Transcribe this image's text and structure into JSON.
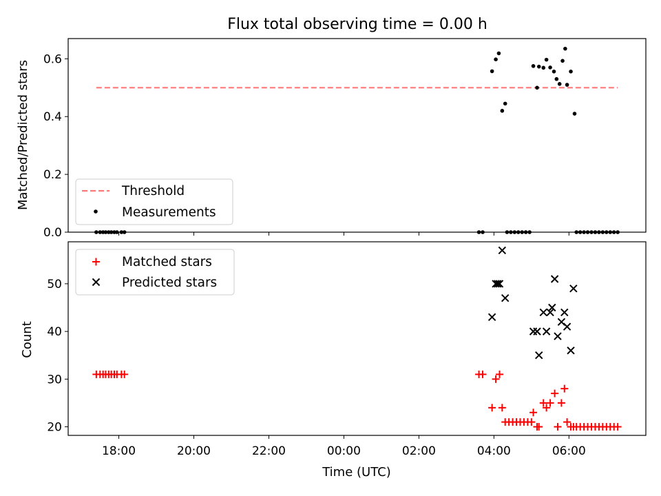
{
  "chart_data": [
    {
      "type": "scatter",
      "title": "Flux total observing time = 0.00 h",
      "ylabel": "Matched/Predicted stars",
      "ylim": [
        0,
        0.67
      ],
      "yticks": [
        "0.0",
        "0.2",
        "0.4",
        "0.6"
      ],
      "legend_position": "lower-left",
      "threshold": {
        "name": "Threshold",
        "value": 0.5,
        "x_range": [
          -0.6,
          13.3
        ],
        "color": "#ff7777"
      },
      "series": [
        {
          "name": "Measurements",
          "color": "#000000",
          "points": [
            [
              -0.6,
              0
            ],
            [
              -0.5,
              0
            ],
            [
              -0.42,
              0
            ],
            [
              -0.35,
              0
            ],
            [
              -0.27,
              0
            ],
            [
              -0.2,
              0
            ],
            [
              -0.12,
              0
            ],
            [
              -0.05,
              0
            ],
            [
              0.07,
              0
            ],
            [
              0.15,
              0
            ],
            [
              9.6,
              0
            ],
            [
              9.7,
              0
            ],
            [
              9.95,
              0.557
            ],
            [
              10.05,
              0.598
            ],
            [
              10.13,
              0.619
            ],
            [
              10.22,
              0.42
            ],
            [
              10.3,
              0.445
            ],
            [
              10.35,
              0
            ],
            [
              10.45,
              0
            ],
            [
              10.55,
              0
            ],
            [
              10.65,
              0
            ],
            [
              10.75,
              0
            ],
            [
              10.85,
              0
            ],
            [
              10.95,
              0
            ],
            [
              11.05,
              0.575
            ],
            [
              11.15,
              0.5
            ],
            [
              11.2,
              0.573
            ],
            [
              11.32,
              0.569
            ],
            [
              11.4,
              0.597
            ],
            [
              11.5,
              0.57
            ],
            [
              11.6,
              0.556
            ],
            [
              11.67,
              0.53
            ],
            [
              11.75,
              0.513
            ],
            [
              11.83,
              0.593
            ],
            [
              11.9,
              0.635
            ],
            [
              11.95,
              0.51
            ],
            [
              12.05,
              0.556
            ],
            [
              12.15,
              0.41
            ],
            [
              12.2,
              0
            ],
            [
              12.3,
              0
            ],
            [
              12.4,
              0
            ],
            [
              12.5,
              0
            ],
            [
              12.6,
              0
            ],
            [
              12.7,
              0
            ],
            [
              12.8,
              0
            ],
            [
              12.9,
              0
            ],
            [
              13.0,
              0
            ],
            [
              13.1,
              0
            ],
            [
              13.2,
              0
            ],
            [
              13.3,
              0
            ]
          ]
        }
      ]
    },
    {
      "type": "scatter",
      "xlabel": "Time (UTC)",
      "ylabel": "Count",
      "ylim": [
        18.2,
        58.8
      ],
      "xlim": [
        -1.35,
        14.05
      ],
      "xticks": [
        "18:00",
        "20:00",
        "22:00",
        "00:00",
        "02:00",
        "04:00",
        "06:00"
      ],
      "xtick_values": [
        0,
        2,
        4,
        6,
        8,
        10,
        12
      ],
      "yticks": [
        "20",
        "30",
        "40",
        "50"
      ],
      "legend_position": "top-left",
      "series": [
        {
          "name": "Matched stars",
          "color": "#ff0000",
          "marker": "plus",
          "points": [
            [
              -0.6,
              31
            ],
            [
              -0.5,
              31
            ],
            [
              -0.42,
              31
            ],
            [
              -0.35,
              31
            ],
            [
              -0.27,
              31
            ],
            [
              -0.2,
              31
            ],
            [
              -0.12,
              31
            ],
            [
              -0.05,
              31
            ],
            [
              0.07,
              31
            ],
            [
              0.15,
              31
            ],
            [
              9.6,
              31
            ],
            [
              9.7,
              31
            ],
            [
              9.95,
              24
            ],
            [
              10.05,
              30
            ],
            [
              10.15,
              31
            ],
            [
              10.22,
              24
            ],
            [
              10.3,
              21
            ],
            [
              10.4,
              21
            ],
            [
              10.5,
              21
            ],
            [
              10.6,
              21
            ],
            [
              10.7,
              21
            ],
            [
              10.8,
              21
            ],
            [
              10.9,
              21
            ],
            [
              11.0,
              21
            ],
            [
              11.05,
              23
            ],
            [
              11.15,
              20
            ],
            [
              11.2,
              20
            ],
            [
              11.32,
              25
            ],
            [
              11.4,
              24
            ],
            [
              11.5,
              25
            ],
            [
              11.62,
              27
            ],
            [
              11.7,
              20
            ],
            [
              11.8,
              25
            ],
            [
              11.88,
              28
            ],
            [
              11.95,
              21
            ],
            [
              12.05,
              20
            ],
            [
              12.12,
              20
            ],
            [
              12.2,
              20
            ],
            [
              12.3,
              20
            ],
            [
              12.4,
              20
            ],
            [
              12.5,
              20
            ],
            [
              12.6,
              20
            ],
            [
              12.7,
              20
            ],
            [
              12.8,
              20
            ],
            [
              12.9,
              20
            ],
            [
              13.0,
              20
            ],
            [
              13.1,
              20
            ],
            [
              13.2,
              20
            ],
            [
              13.3,
              20
            ]
          ]
        },
        {
          "name": "Predicted stars",
          "color": "#000000",
          "marker": "x",
          "points": [
            [
              9.95,
              43
            ],
            [
              10.05,
              50
            ],
            [
              10.1,
              50
            ],
            [
              10.15,
              50
            ],
            [
              10.22,
              57
            ],
            [
              10.3,
              47
            ],
            [
              11.05,
              40
            ],
            [
              11.15,
              40
            ],
            [
              11.2,
              35
            ],
            [
              11.32,
              44
            ],
            [
              11.4,
              40
            ],
            [
              11.5,
              44
            ],
            [
              11.55,
              45
            ],
            [
              11.62,
              51
            ],
            [
              11.7,
              39
            ],
            [
              11.8,
              42
            ],
            [
              11.88,
              44
            ],
            [
              11.95,
              41
            ],
            [
              12.05,
              36
            ],
            [
              12.12,
              49
            ]
          ]
        }
      ]
    }
  ]
}
